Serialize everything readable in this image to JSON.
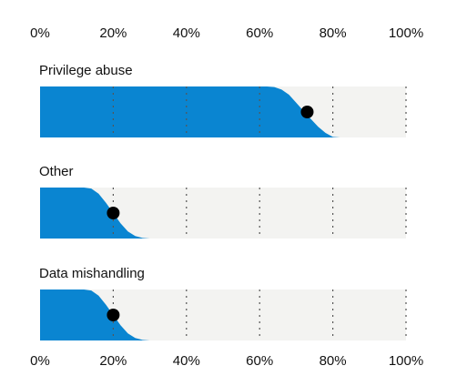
{
  "chart_data": {
    "type": "area",
    "x_ticks": [
      "0%",
      "20%",
      "40%",
      "60%",
      "80%",
      "100%"
    ],
    "xlim": [
      0,
      100
    ],
    "grid": "dotted vertical lines at 20% intervals",
    "colors": {
      "fill": "#0a85d1",
      "track": "#f3f3f1",
      "grid": "#555555",
      "marker": "#000000"
    },
    "series": [
      {
        "name": "Privilege abuse",
        "curve": [
          [
            0,
            1
          ],
          [
            62,
            1
          ],
          [
            64,
            0.99
          ],
          [
            66,
            0.94
          ],
          [
            68,
            0.84
          ],
          [
            70,
            0.68
          ],
          [
            72,
            0.52
          ],
          [
            74,
            0.36
          ],
          [
            76,
            0.21
          ],
          [
            78,
            0.09
          ],
          [
            80,
            0.01
          ],
          [
            82,
            0
          ]
        ],
        "marker_x": 73,
        "marker_level": 0.5
      },
      {
        "name": "Other",
        "curve": [
          [
            0,
            1
          ],
          [
            12,
            1
          ],
          [
            14,
            0.98
          ],
          [
            16,
            0.88
          ],
          [
            18,
            0.7
          ],
          [
            20,
            0.5
          ],
          [
            22,
            0.3
          ],
          [
            24,
            0.14
          ],
          [
            26,
            0.05
          ],
          [
            28,
            0.01
          ],
          [
            30,
            0
          ]
        ],
        "marker_x": 20,
        "marker_level": 0.5
      },
      {
        "name": "Data mishandling",
        "curve": [
          [
            0,
            1
          ],
          [
            12,
            1
          ],
          [
            14,
            0.98
          ],
          [
            16,
            0.88
          ],
          [
            18,
            0.7
          ],
          [
            20,
            0.5
          ],
          [
            22,
            0.3
          ],
          [
            24,
            0.14
          ],
          [
            26,
            0.05
          ],
          [
            28,
            0.01
          ],
          [
            30,
            0
          ]
        ],
        "marker_x": 20,
        "marker_level": 0.5
      }
    ]
  }
}
